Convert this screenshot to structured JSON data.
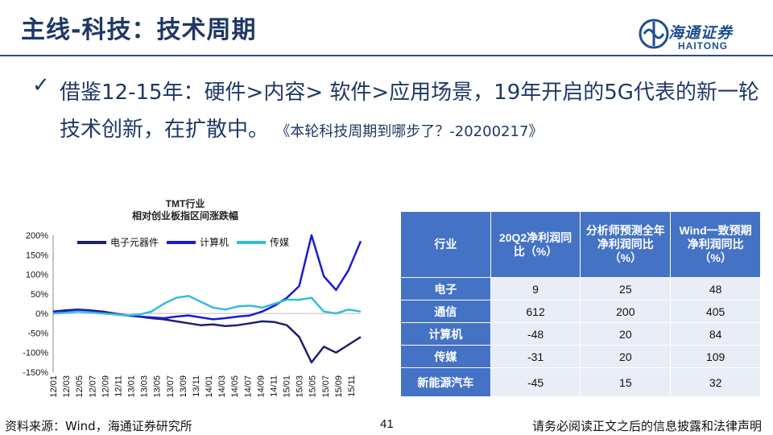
{
  "slide": {
    "title": "主线-科技：技术周期",
    "bullet_main": "借鉴12-15年：硬件>内容> 软件>应用场景，19年开启的5G代表的新一轮技术创新，在扩散中。",
    "bullet_cite": "《本轮科技周期到哪步了？-20200217》"
  },
  "logo": {
    "cn": "海通证券",
    "en": "HAITONG"
  },
  "chart_data": {
    "type": "line",
    "title": "TMT行业",
    "subtitle": "相对创业板指区间涨跌幅",
    "ylim": [
      -150,
      200
    ],
    "y_ticks": [
      "200%",
      "150%",
      "100%",
      "50%",
      "0%",
      "-50%",
      "-100%",
      "-150%"
    ],
    "x_ticks": [
      "12/01",
      "12/03",
      "12/05",
      "12/07",
      "12/09",
      "12/11",
      "13/01",
      "13/03",
      "13/05",
      "13/07",
      "13/09",
      "13/11",
      "14/01",
      "14/03",
      "14/05",
      "14/07",
      "14/09",
      "14/11",
      "15/01",
      "15/03",
      "15/05",
      "15/07",
      "15/09",
      "15/11"
    ],
    "series": [
      {
        "name": "电子元器件",
        "color": "#1f1f6e",
        "values": [
          5,
          8,
          10,
          8,
          5,
          0,
          -5,
          -8,
          -12,
          -15,
          -20,
          -25,
          -30,
          -28,
          -32,
          -30,
          -25,
          -20,
          -22,
          -30,
          -60,
          -125,
          -85,
          -100,
          -80,
          -60
        ]
      },
      {
        "name": "计算机",
        "color": "#1a1ad6",
        "values": [
          3,
          5,
          8,
          5,
          2,
          -2,
          -5,
          -8,
          -10,
          -12,
          -8,
          -5,
          -10,
          -15,
          -12,
          -8,
          -5,
          5,
          20,
          40,
          70,
          200,
          95,
          60,
          110,
          185
        ]
      },
      {
        "name": "传媒",
        "color": "#33bbe0",
        "values": [
          0,
          2,
          5,
          3,
          0,
          -2,
          -5,
          -3,
          5,
          25,
          40,
          45,
          30,
          15,
          10,
          18,
          20,
          15,
          25,
          35,
          35,
          40,
          5,
          0,
          10,
          5
        ]
      }
    ]
  },
  "table": {
    "headers": [
      "行业",
      "20Q2净利润同比（%）",
      "分析师预测全年净利润同比（%）",
      "Wind一致预期净利润同比（%）"
    ],
    "rows": [
      [
        "电子",
        "9",
        "25",
        "48"
      ],
      [
        "通信",
        "612",
        "200",
        "405"
      ],
      [
        "计算机",
        "-48",
        "20",
        "84"
      ],
      [
        "传媒",
        "-31",
        "20",
        "109"
      ],
      [
        "新能源汽车",
        "-45",
        "15",
        "32"
      ]
    ]
  },
  "footer": {
    "source": "资料来源：Wind，海通证券研究所",
    "page": "41",
    "disclaimer": "请务必阅读正文之后的信息披露和法律声明"
  }
}
